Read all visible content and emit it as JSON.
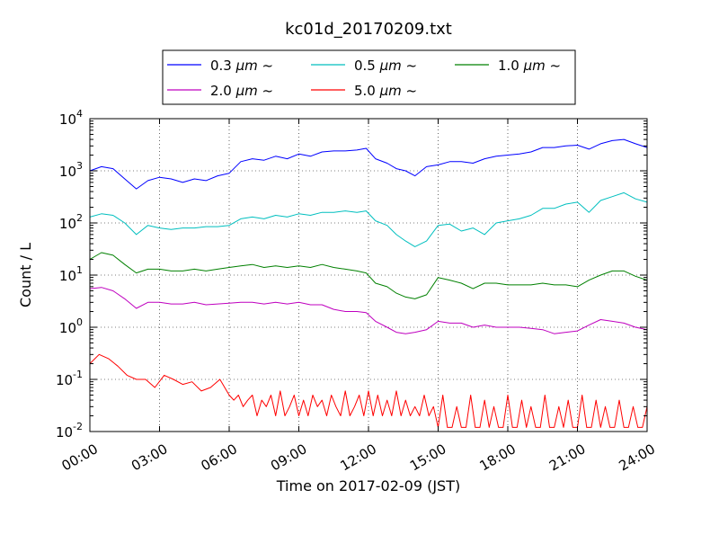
{
  "chart_data": {
    "type": "line",
    "title": "kc01d_20170209.txt",
    "xlabel": "Time on 2017-02-09 (JST)",
    "ylabel": "Count / L",
    "yscale": "log",
    "ylim": [
      0.01,
      10000
    ],
    "xlim": [
      "00:00",
      "24:00"
    ],
    "x_unit": "hours",
    "grid": true,
    "legend_position": "top-center",
    "x_ticks": [
      "00:00",
      "03:00",
      "06:00",
      "09:00",
      "12:00",
      "15:00",
      "18:00",
      "21:00",
      "24:00"
    ],
    "y_ticks": [
      {
        "base": "10",
        "exp": "-2"
      },
      {
        "base": "10",
        "exp": "-1"
      },
      {
        "base": "10",
        "exp": "0"
      },
      {
        "base": "10",
        "exp": "1"
      },
      {
        "base": "10",
        "exp": "2"
      },
      {
        "base": "10",
        "exp": "3"
      },
      {
        "base": "10",
        "exp": "4"
      }
    ],
    "series": [
      {
        "name": "0.3 μm ~",
        "label_main": "0.3",
        "label_unit": "μm",
        "label_tilde": "~",
        "color": "#0000ff",
        "x": [
          0,
          0.5,
          1,
          1.5,
          2,
          2.5,
          3,
          3.5,
          4,
          4.5,
          5,
          5.5,
          6,
          6.5,
          7,
          7.5,
          8,
          8.5,
          9,
          9.5,
          10,
          10.5,
          11,
          11.5,
          11.9,
          12.3,
          12.8,
          13.2,
          13.6,
          14,
          14.5,
          15,
          15.5,
          16,
          16.5,
          17,
          17.5,
          18,
          18.5,
          19,
          19.5,
          20,
          20.5,
          21,
          21.5,
          22,
          22.5,
          23,
          23.5,
          24
        ],
        "values": [
          1000,
          1200,
          1100,
          700,
          450,
          650,
          750,
          700,
          600,
          700,
          650,
          800,
          900,
          1500,
          1700,
          1600,
          1900,
          1700,
          2100,
          1900,
          2300,
          2400,
          2400,
          2500,
          2700,
          1700,
          1400,
          1100,
          1000,
          800,
          1200,
          1300,
          1500,
          1500,
          1400,
          1700,
          1900,
          2000,
          2100,
          2300,
          2800,
          2800,
          3000,
          3100,
          2600,
          3300,
          3800,
          4000,
          3300,
          2800
        ]
      },
      {
        "name": "0.5 μm ~",
        "label_main": "0.5",
        "label_unit": "μm",
        "label_tilde": "~",
        "color": "#00bfbf",
        "x": [
          0,
          0.5,
          1,
          1.5,
          2,
          2.5,
          3,
          3.5,
          4,
          4.5,
          5,
          5.5,
          6,
          6.5,
          7,
          7.5,
          8,
          8.5,
          9,
          9.5,
          10,
          10.5,
          11,
          11.5,
          11.9,
          12.3,
          12.8,
          13.2,
          13.6,
          14,
          14.5,
          15,
          15.5,
          16,
          16.5,
          17,
          17.5,
          18,
          18.5,
          19,
          19.5,
          20,
          20.5,
          21,
          21.5,
          22,
          22.5,
          23,
          23.5,
          24
        ],
        "values": [
          130,
          150,
          140,
          100,
          60,
          90,
          80,
          75,
          80,
          80,
          85,
          85,
          90,
          120,
          130,
          120,
          140,
          130,
          150,
          140,
          160,
          160,
          170,
          160,
          170,
          110,
          90,
          60,
          45,
          35,
          45,
          90,
          95,
          70,
          80,
          60,
          100,
          110,
          120,
          140,
          190,
          190,
          230,
          250,
          160,
          270,
          320,
          380,
          290,
          250
        ]
      },
      {
        "name": "1.0 μm ~",
        "label_main": "1.0",
        "label_unit": "μm",
        "label_tilde": "~",
        "color": "#008000",
        "x": [
          0,
          0.5,
          1,
          1.5,
          2,
          2.5,
          3,
          3.5,
          4,
          4.5,
          5,
          5.5,
          6,
          6.5,
          7,
          7.5,
          8,
          8.5,
          9,
          9.5,
          10,
          10.5,
          11,
          11.5,
          11.9,
          12.3,
          12.8,
          13.2,
          13.6,
          14,
          14.5,
          15,
          15.5,
          16,
          16.5,
          17,
          17.5,
          18,
          18.5,
          19,
          19.5,
          20,
          20.5,
          21,
          21.5,
          22,
          22.5,
          23,
          23.5,
          24
        ],
        "values": [
          20,
          27,
          24,
          16,
          11,
          13,
          13,
          12,
          12,
          13,
          12,
          13,
          14,
          15,
          16,
          14,
          15,
          14,
          15,
          14,
          16,
          14,
          13,
          12,
          11,
          7,
          6,
          4.5,
          3.8,
          3.5,
          4.2,
          9,
          8,
          7,
          5.5,
          7,
          7,
          6.5,
          6.5,
          6.5,
          7,
          6.5,
          6.5,
          6,
          8,
          10,
          12,
          12,
          9.5,
          8
        ]
      },
      {
        "name": "2.0 μm ~",
        "label_main": "2.0",
        "label_unit": "μm",
        "label_tilde": "~",
        "color": "#bf00bf",
        "x": [
          0,
          0.5,
          1,
          1.5,
          2,
          2.5,
          3,
          3.5,
          4,
          4.5,
          5,
          5.5,
          6,
          6.5,
          7,
          7.5,
          8,
          8.5,
          9,
          9.5,
          10,
          10.5,
          11,
          11.5,
          11.9,
          12.3,
          12.8,
          13.2,
          13.6,
          14,
          14.5,
          15,
          15.5,
          16,
          16.5,
          17,
          17.5,
          18,
          18.5,
          19,
          19.5,
          20,
          20.5,
          21,
          21.5,
          22,
          22.5,
          23,
          23.5,
          24
        ],
        "values": [
          5.5,
          5.8,
          5,
          3.5,
          2.3,
          3,
          3,
          2.8,
          2.8,
          3,
          2.7,
          2.8,
          2.9,
          3,
          3,
          2.8,
          3,
          2.8,
          3,
          2.7,
          2.7,
          2.2,
          2,
          2,
          1.9,
          1.3,
          1.0,
          0.8,
          0.75,
          0.8,
          0.9,
          1.3,
          1.2,
          1.2,
          1.0,
          1.1,
          1.0,
          1.0,
          1.0,
          0.95,
          0.9,
          0.75,
          0.8,
          0.85,
          1.1,
          1.4,
          1.3,
          1.2,
          1.0,
          0.9
        ]
      },
      {
        "name": "5.0 μm ~",
        "label_main": "5.0",
        "label_unit": "μm",
        "label_tilde": "~",
        "color": "#ff0000",
        "x": [
          0,
          0.4,
          0.8,
          1.2,
          1.6,
          2.0,
          2.4,
          2.8,
          3.2,
          3.6,
          4.0,
          4.4,
          4.8,
          5.2,
          5.6,
          6.0,
          6.2,
          6.4,
          6.6,
          6.8,
          7.0,
          7.2,
          7.4,
          7.6,
          7.8,
          8.0,
          8.2,
          8.4,
          8.6,
          8.8,
          9.0,
          9.2,
          9.4,
          9.6,
          9.8,
          10.0,
          10.2,
          10.4,
          10.6,
          10.8,
          11.0,
          11.2,
          11.4,
          11.6,
          11.8,
          12.0,
          12.2,
          12.4,
          12.6,
          12.8,
          13.0,
          13.2,
          13.4,
          13.6,
          13.8,
          14.0,
          14.2,
          14.4,
          14.6,
          14.8,
          15.0,
          15.2,
          15.4,
          15.6,
          15.8,
          16.0,
          16.2,
          16.4,
          16.6,
          16.8,
          17.0,
          17.2,
          17.4,
          17.6,
          17.8,
          18.0,
          18.2,
          18.4,
          18.6,
          18.8,
          19.0,
          19.2,
          19.4,
          19.6,
          19.8,
          20.0,
          20.2,
          20.4,
          20.6,
          20.8,
          21.0,
          21.2,
          21.4,
          21.6,
          21.8,
          22.0,
          22.2,
          22.4,
          22.6,
          22.8,
          23.0,
          23.2,
          23.4,
          23.6,
          23.8,
          24.0
        ],
        "values": [
          0.2,
          0.3,
          0.25,
          0.18,
          0.12,
          0.1,
          0.1,
          0.07,
          0.12,
          0.1,
          0.08,
          0.09,
          0.06,
          0.07,
          0.1,
          0.05,
          0.04,
          0.05,
          0.03,
          0.04,
          0.05,
          0.02,
          0.04,
          0.03,
          0.05,
          0.02,
          0.06,
          0.02,
          0.03,
          0.05,
          0.02,
          0.04,
          0.02,
          0.05,
          0.03,
          0.04,
          0.02,
          0.05,
          0.03,
          0.02,
          0.06,
          0.02,
          0.03,
          0.05,
          0.02,
          0.06,
          0.02,
          0.05,
          0.02,
          0.04,
          0.02,
          0.06,
          0.02,
          0.04,
          0.02,
          0.03,
          0.02,
          0.05,
          0.02,
          0.03,
          0.012,
          0.05,
          0.012,
          0.012,
          0.03,
          0.012,
          0.012,
          0.05,
          0.012,
          0.012,
          0.04,
          0.012,
          0.03,
          0.012,
          0.012,
          0.05,
          0.012,
          0.012,
          0.04,
          0.012,
          0.03,
          0.012,
          0.012,
          0.05,
          0.012,
          0.012,
          0.03,
          0.012,
          0.04,
          0.012,
          0.012,
          0.05,
          0.012,
          0.012,
          0.04,
          0.012,
          0.03,
          0.012,
          0.012,
          0.04,
          0.012,
          0.012,
          0.03,
          0.012,
          0.012,
          0.03
        ]
      }
    ]
  }
}
